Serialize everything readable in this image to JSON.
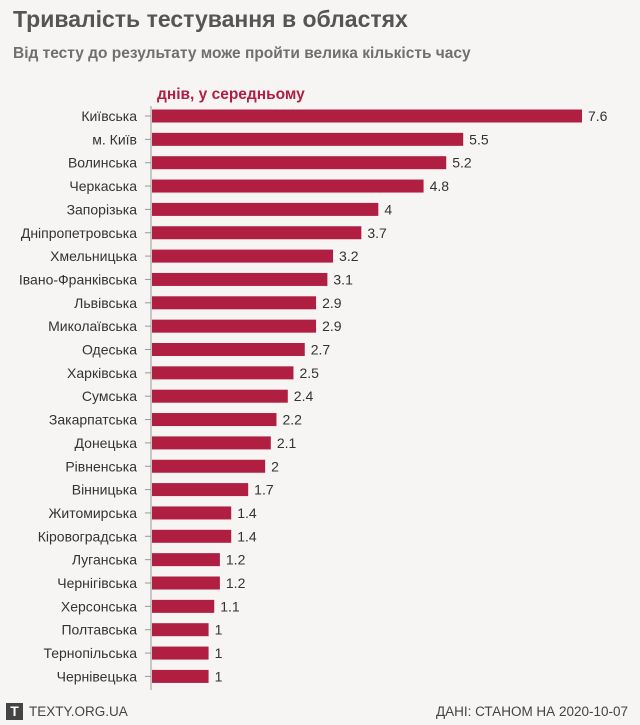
{
  "header": {
    "title": "Тривалість тестування в областях",
    "subtitle": "Від тесту до результату може пройти велика кількість часу",
    "unit_label": "днів, у середньому"
  },
  "footer": {
    "logo_letter": "T",
    "site": "TEXTY.ORG.UA",
    "source": "ДАНІ: СТАНОМ НА 2020-10-07"
  },
  "colors": {
    "bar": "#b01e41",
    "unit_label": "#b01e41",
    "axis": "#999999",
    "text": "#333333",
    "background": "#f6f5f3"
  },
  "chart_data": {
    "type": "bar",
    "orientation": "horizontal",
    "title": "Тривалість тестування в областях",
    "subtitle": "Від тесту до результату може пройти велика кількість часу",
    "xlabel": "днів, у середньому",
    "ylabel": "",
    "xlim": [
      0,
      7.6
    ],
    "categories": [
      "Київська",
      "м. Київ",
      "Волинська",
      "Черкаська",
      "Запорізька",
      "Дніпропетровська",
      "Хмельницька",
      "Івано-Франківська",
      "Львівська",
      "Миколаївська",
      "Одеська",
      "Харківська",
      "Сумська",
      "Закарпатська",
      "Донецька",
      "Рівненська",
      "Вінницька",
      "Житомирська",
      "Кіровоградська",
      "Луганська",
      "Чернігівська",
      "Херсонська",
      "Полтавська",
      "Тернопільська",
      "Чернівецька"
    ],
    "values": [
      7.6,
      5.5,
      5.2,
      4.8,
      4,
      3.7,
      3.2,
      3.1,
      2.9,
      2.9,
      2.7,
      2.5,
      2.4,
      2.2,
      2.1,
      2,
      1.7,
      1.4,
      1.4,
      1.2,
      1.2,
      1.1,
      1,
      1,
      1
    ],
    "value_labels": [
      "7.6",
      "5.5",
      "5.2",
      "4.8",
      "4",
      "3.7",
      "3.2",
      "3.1",
      "2.9",
      "2.9",
      "2.7",
      "2.5",
      "2.4",
      "2.2",
      "2.1",
      "2",
      "1.7",
      "1.4",
      "1.4",
      "1.2",
      "1.2",
      "1.1",
      "1",
      "1",
      "1"
    ],
    "grid": false,
    "legend": "none"
  }
}
